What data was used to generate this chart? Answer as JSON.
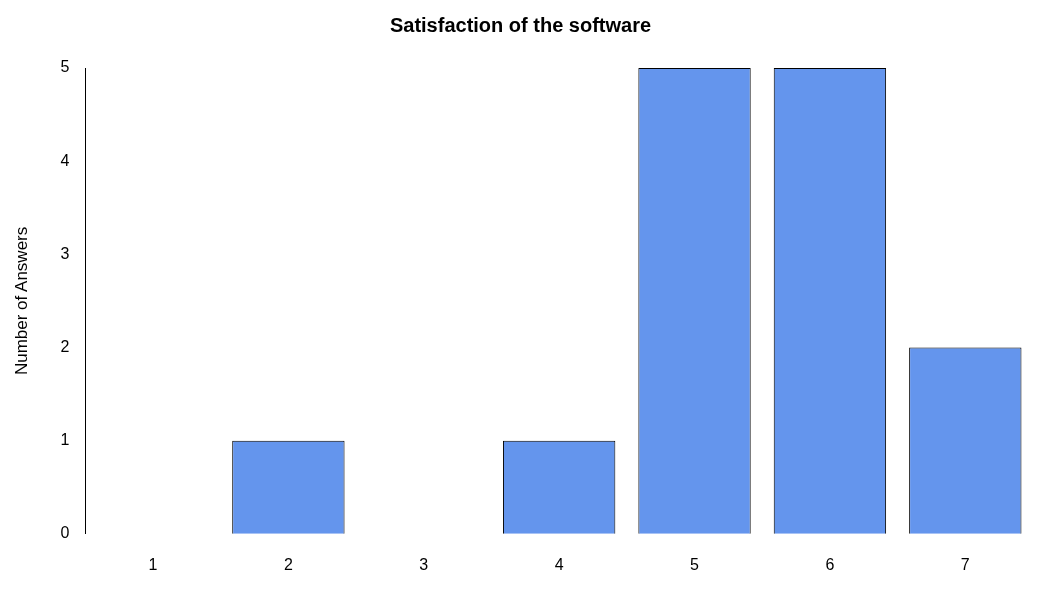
{
  "chart_data": {
    "type": "bar",
    "title": "Satisfaction of the software",
    "ylabel": "Number of Answers",
    "categories": [
      "1",
      "2",
      "3",
      "4",
      "5",
      "6",
      "7"
    ],
    "values": [
      0,
      1,
      0,
      1,
      5,
      5,
      2
    ],
    "color": "#6495ed",
    "ylim": [
      0,
      5
    ],
    "yticks": [
      0,
      1,
      2,
      3,
      4,
      5
    ],
    "grid": false,
    "legend": false
  }
}
